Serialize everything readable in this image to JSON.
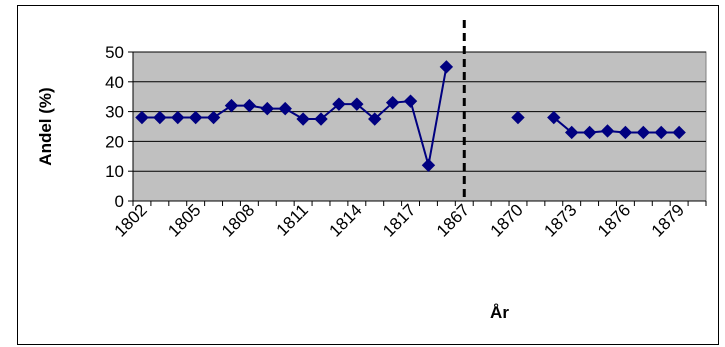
{
  "chart_data": {
    "type": "line",
    "title": "",
    "xlabel": "År",
    "ylabel": "Andel (%)",
    "ylim": [
      0,
      50
    ],
    "yticks": [
      "0",
      "10",
      "20",
      "30",
      "40",
      "50"
    ],
    "grid": true,
    "legend": "none",
    "categories": [
      "1802",
      "1803",
      "1804",
      "1805",
      "1806",
      "1807",
      "1808",
      "1809",
      "1810",
      "1811",
      "1812",
      "1813",
      "1814",
      "1815",
      "1816",
      "1817",
      "1818",
      "1819",
      "1867",
      "1868",
      "1869",
      "1870",
      "1871",
      "1872",
      "1873",
      "1874",
      "1875",
      "1876",
      "1877",
      "1878",
      "1879",
      "1880"
    ],
    "tick_labels": [
      "1802",
      "1805",
      "1808",
      "1811",
      "1814",
      "1817",
      "1867",
      "1870",
      "1873",
      "1876",
      "1879"
    ],
    "tick_label_categories": [
      "1802",
      "1805",
      "1808",
      "1811",
      "1814",
      "1817",
      "1867",
      "1870",
      "1873",
      "1876",
      "1879"
    ],
    "series": [
      {
        "values": [
          28,
          28,
          28,
          28,
          28,
          32,
          32,
          31,
          31,
          27.5,
          27.5,
          32.5,
          32.5,
          27.5,
          33,
          33.5,
          12,
          45,
          null,
          null,
          null,
          28,
          null,
          28,
          23,
          23,
          23.5,
          23,
          23,
          23,
          23,
          null
        ]
      }
    ],
    "divider_after_category": "1867",
    "colors": {
      "series": "#000080",
      "plot_bg": "#c0c0c0",
      "grid": "#000000",
      "divider": "#000000"
    }
  }
}
